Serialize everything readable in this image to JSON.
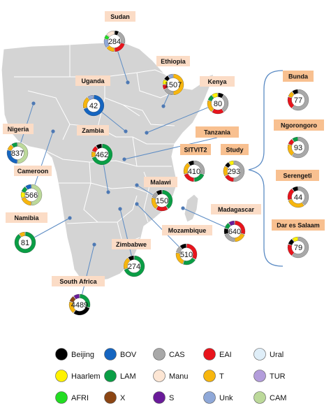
{
  "countries": [
    {
      "name": "Sudan",
      "total": "284",
      "segments": [
        [
          "Beijing",
          1
        ],
        [
          "CAS",
          3
        ],
        [
          "EAI",
          3
        ],
        [
          "T",
          2
        ],
        [
          "Unk",
          2
        ],
        [
          "AFRI",
          1
        ],
        [
          "Manu",
          2
        ]
      ]
    },
    {
      "name": "Ethiopia",
      "total": "1507",
      "segments": [
        [
          "T",
          6
        ],
        [
          "CAS",
          2
        ],
        [
          "EAI",
          1
        ],
        [
          "Haarlem",
          1
        ],
        [
          "Beijing",
          1
        ],
        [
          "Unk",
          1
        ]
      ]
    },
    {
      "name": "Uganda",
      "total": "42",
      "segments": [
        [
          "BOV",
          7
        ],
        [
          "T",
          2
        ],
        [
          "Unk",
          1
        ]
      ]
    },
    {
      "name": "Kenya",
      "total": "80",
      "segments": [
        [
          "Beijing",
          1
        ],
        [
          "CAS",
          3
        ],
        [
          "EAI",
          2
        ],
        [
          "T",
          2
        ],
        [
          "LAM",
          1
        ],
        [
          "Haarlem",
          1
        ]
      ]
    },
    {
      "name": "Zambia",
      "total": "462",
      "segments": [
        [
          "LAM",
          7
        ],
        [
          "T",
          1
        ],
        [
          "EAI",
          1
        ],
        [
          "Beijing",
          1
        ]
      ]
    },
    {
      "name": "Tanzania",
      "total": "",
      "segments": []
    },
    {
      "name": "Nigeria",
      "total": "837",
      "segments": [
        [
          "CAM",
          5
        ],
        [
          "BOV",
          3
        ],
        [
          "T",
          1
        ],
        [
          "LAM",
          1
        ]
      ]
    },
    {
      "name": "Cameroon",
      "total": "566",
      "segments": [
        [
          "CAM",
          5
        ],
        [
          "T",
          2
        ],
        [
          "Haarlem",
          1
        ],
        [
          "LAM",
          1
        ],
        [
          "BOV",
          1
        ]
      ]
    },
    {
      "name": "SITVIT2",
      "total": "410",
      "segments": [
        [
          "CAS",
          3
        ],
        [
          "LAM",
          2
        ],
        [
          "EAI",
          2
        ],
        [
          "T",
          2
        ],
        [
          "Beijing",
          1
        ]
      ]
    },
    {
      "name": "Study",
      "total": "293",
      "segments": [
        [
          "CAS",
          6
        ],
        [
          "EAI",
          2
        ],
        [
          "T",
          2
        ],
        [
          "Beijing",
          1
        ],
        [
          "Haarlem",
          1
        ]
      ]
    },
    {
      "name": "Malawi",
      "total": "150",
      "segments": [
        [
          "LAM",
          4
        ],
        [
          "EAI",
          2
        ],
        [
          "T",
          2
        ],
        [
          "CAS",
          1
        ],
        [
          "Beijing",
          1
        ]
      ]
    },
    {
      "name": "Namibia",
      "total": "81",
      "segments": [
        [
          "LAM",
          9
        ],
        [
          "T",
          1
        ]
      ]
    },
    {
      "name": "Madagascar",
      "total": "640",
      "segments": [
        [
          "EAI",
          3
        ],
        [
          "T",
          2
        ],
        [
          "CAS",
          2
        ],
        [
          "Beijing",
          1
        ],
        [
          "LAM",
          1
        ],
        [
          "S",
          1
        ]
      ]
    },
    {
      "name": "Mozambique",
      "total": "510",
      "segments": [
        [
          "EAI",
          3
        ],
        [
          "LAM",
          2
        ],
        [
          "T",
          2
        ],
        [
          "CAS",
          1
        ],
        [
          "Beijing",
          1
        ]
      ]
    },
    {
      "name": "Zimbabwe",
      "total": "274",
      "segments": [
        [
          "LAM",
          7
        ],
        [
          "T",
          2
        ],
        [
          "Beijing",
          1
        ]
      ]
    },
    {
      "name": "South Africa",
      "total": "4489",
      "segments": [
        [
          "LAM",
          3
        ],
        [
          "Beijing",
          3
        ],
        [
          "T",
          2
        ],
        [
          "X",
          1
        ],
        [
          "S",
          1
        ]
      ]
    },
    {
      "name": "Bunda",
      "total": "77",
      "segments": [
        [
          "CAS",
          6
        ],
        [
          "EAI",
          2
        ],
        [
          "T",
          1
        ],
        [
          "Beijing",
          1
        ]
      ]
    },
    {
      "name": "Ngorongoro",
      "total": "93",
      "segments": [
        [
          "CAS",
          6
        ],
        [
          "T",
          2
        ],
        [
          "EAI",
          1
        ],
        [
          "LAM",
          1
        ]
      ]
    },
    {
      "name": "Serengeti",
      "total": "44",
      "segments": [
        [
          "CAS",
          4
        ],
        [
          "T",
          3
        ],
        [
          "EAI",
          2
        ],
        [
          "Beijing",
          1
        ]
      ]
    },
    {
      "name": "Dar es Salaam",
      "total": "79",
      "segments": [
        [
          "CAS",
          6
        ],
        [
          "EAI",
          2
        ],
        [
          "Beijing",
          1
        ],
        [
          "Haarlem",
          1
        ]
      ]
    }
  ],
  "legend": [
    {
      "label": "Beijing",
      "color": "#000000"
    },
    {
      "label": "BOV",
      "color": "#1565c0"
    },
    {
      "label": "CAS",
      "color": "#a8a8a8"
    },
    {
      "label": "EAI",
      "color": "#e8141c"
    },
    {
      "label": "Ural",
      "color": "#dfeef8"
    },
    {
      "label": "Haarlem",
      "color": "#fff200"
    },
    {
      "label": "LAM",
      "color": "#0a9e45"
    },
    {
      "label": "Manu",
      "color": "#fde6d4"
    },
    {
      "label": "T",
      "color": "#f7b60e"
    },
    {
      "label": "TUR",
      "color": "#b39ddb"
    },
    {
      "label": "AFRI",
      "color": "#22dd22"
    },
    {
      "label": "X",
      "color": "#8b4513"
    },
    {
      "label": "S",
      "color": "#6a1b9a"
    },
    {
      "label": "Unk",
      "color": "#8fa8d8"
    },
    {
      "label": "CAM",
      "color": "#bcd99a"
    }
  ],
  "colors": {
    "land": "#d4d4d4",
    "label_box": "#fbdcc6",
    "tanzania_box": "#f8c090",
    "connector": "#5b8bc4",
    "dot": "#4e79b4"
  }
}
